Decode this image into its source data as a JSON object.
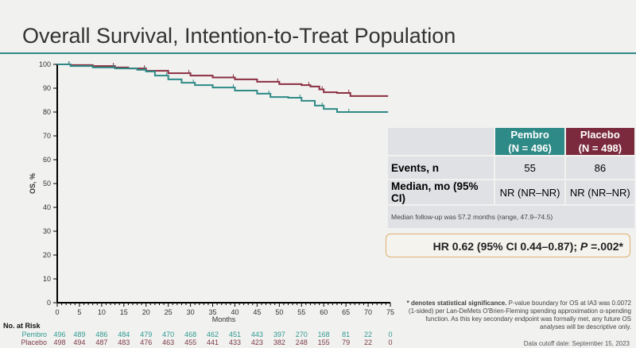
{
  "title": "Overall Survival, Intention-to-Treat Population",
  "chart_data": {
    "type": "line",
    "title": "",
    "xlabel": "Months",
    "ylabel": "OS, %",
    "xlim": [
      0,
      75
    ],
    "ylim": [
      0,
      100
    ],
    "xticks": [
      0,
      5,
      10,
      15,
      20,
      25,
      30,
      35,
      40,
      45,
      50,
      55,
      60,
      65,
      70,
      75
    ],
    "yticks": [
      0,
      10,
      20,
      30,
      40,
      50,
      60,
      70,
      80,
      90,
      100
    ],
    "grid": false,
    "series": [
      {
        "color": "#8b2e3f",
        "x": [
          0,
          3,
          8,
          13,
          16,
          20,
          25,
          30,
          35,
          40,
          45,
          50,
          55,
          57,
          59,
          60,
          63,
          66,
          74.5
        ],
        "y": [
          100,
          99.7,
          99.3,
          98.7,
          98.3,
          97.3,
          96.3,
          95.3,
          94.5,
          93.7,
          92.7,
          91.7,
          91.3,
          90.7,
          89.5,
          88.3,
          88,
          86.7,
          86.7
        ]
      },
      {
        "color": "#2e8a86",
        "x": [
          0,
          3,
          8,
          13,
          18,
          20,
          22,
          25,
          28,
          31,
          35,
          40,
          45,
          48,
          52,
          55,
          58,
          60,
          63,
          66,
          74.5
        ],
        "y": [
          100,
          99.3,
          98.7,
          98.3,
          97.7,
          97,
          95.3,
          93.7,
          92.3,
          91.3,
          90.3,
          89,
          87.7,
          86.3,
          86,
          84.7,
          82.7,
          81.3,
          80,
          80,
          80
        ]
      }
    ]
  },
  "at_risk": {
    "label": "No. at Risk",
    "rows": [
      {
        "name": "Pembro",
        "color": "#2e9a90",
        "values": [
          "496",
          "489",
          "486",
          "484",
          "479",
          "470",
          "468",
          "462",
          "451",
          "443",
          "397",
          "270",
          "168",
          "81",
          "22",
          "0"
        ]
      },
      {
        "name": "Placebo",
        "color": "#7b3a48",
        "values": [
          "498",
          "494",
          "487",
          "483",
          "476",
          "463",
          "455",
          "441",
          "433",
          "423",
          "382",
          "248",
          "155",
          "79",
          "22",
          "0"
        ]
      }
    ]
  },
  "table": {
    "pembro_header": "Pembro",
    "pembro_n": "(N = 496)",
    "pembro_color": "#2e8a86",
    "placebo_header": "Placebo",
    "placebo_n": "(N = 498)",
    "placebo_color": "#7a2a3c",
    "rows": [
      {
        "label": "Events, n",
        "pembro": "55",
        "placebo": "86"
      },
      {
        "label": "Median, mo (95% CI)",
        "pembro": "NR (NR–NR)",
        "placebo": "NR (NR–NR)"
      }
    ],
    "note": "Median follow-up was 57.2 months (range, 47.9–74.5)"
  },
  "hr": {
    "text": "HR 0.62 (95% CI 0.44–0.87); ",
    "p_label": "P",
    "p_value": " =.002*"
  },
  "footnote": {
    "bold": "* denotes statistical significance.",
    "text": " P-value boundary for OS at IA3 was 0.0072 (1-sided) per Lan-DeMets O'Brien-Fleming spending approximation α-spending function. As this key secondary endpoint was formally met, any future OS analyses will be descriptive only."
  },
  "cutoff": "Data cutoff date: September 15, 2023"
}
